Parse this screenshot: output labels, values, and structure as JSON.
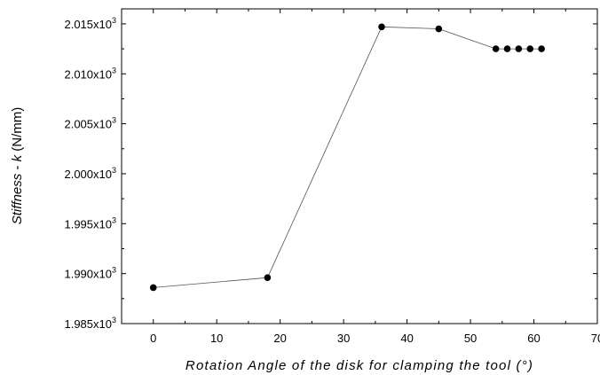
{
  "chart_data": {
    "type": "line",
    "title": "",
    "xlabel": "Rotation Angle of the disk for clamping the tool (°)",
    "ylabel": "Stiffness - k (N/mm)",
    "xlim": [
      -5,
      70
    ],
    "ylim": [
      1.985,
      2.0165
    ],
    "x_ticks": [
      0,
      10,
      20,
      30,
      40,
      50,
      60,
      70
    ],
    "x_tick_labels": [
      "0",
      "10",
      "20",
      "30",
      "40",
      "50",
      "60",
      "70"
    ],
    "y_ticks": [
      1.985,
      1.99,
      1.995,
      2.0,
      2.005,
      2.01,
      2.015
    ],
    "y_tick_labels": [
      {
        "mantissa": "1.985x10",
        "exp": "3"
      },
      {
        "mantissa": "1.990x10",
        "exp": "3"
      },
      {
        "mantissa": "1.995x10",
        "exp": "3"
      },
      {
        "mantissa": "2.000x10",
        "exp": "3"
      },
      {
        "mantissa": "2.005x10",
        "exp": "3"
      },
      {
        "mantissa": "2.010x10",
        "exp": "3"
      },
      {
        "mantissa": "2.015x10",
        "exp": "3"
      }
    ],
    "grid": false,
    "legend": "none",
    "series": [
      {
        "x": [
          0,
          18,
          36,
          45,
          54,
          55.8,
          57.6,
          59.4,
          61.2
        ],
        "y": [
          1.9886,
          1.9896,
          2.0147,
          2.0145,
          2.0125,
          2.0125,
          2.0125,
          2.0125,
          2.0125
        ],
        "marker": "circle",
        "color": "#000000"
      }
    ]
  }
}
